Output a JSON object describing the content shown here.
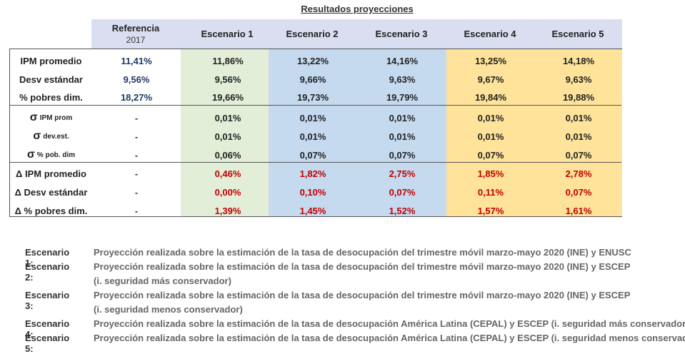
{
  "title": "Resultados proyecciones",
  "columns": [
    {
      "label": "Referencia",
      "sub": "2017"
    },
    {
      "label": "Escenario 1"
    },
    {
      "label": "Escenario 2"
    },
    {
      "label": "Escenario 3"
    },
    {
      "label": "Escenario 4"
    },
    {
      "label": "Escenario 5"
    }
  ],
  "rows": [
    {
      "label": "IPM promedio",
      "values": [
        "11,41%",
        "11,86%",
        "13,22%",
        "14,16%",
        "13,25%",
        "14,18%"
      ]
    },
    {
      "label": "Desv estándar",
      "values": [
        "9,56%",
        "9,56%",
        "9,66%",
        "9,63%",
        "9,67%",
        "9,63%"
      ]
    },
    {
      "label": "% pobres dim.",
      "values": [
        "18,27%",
        "19,66%",
        "19,73%",
        "19,79%",
        "19,84%",
        "19,88%"
      ]
    },
    {
      "symbol": "σ",
      "sub": "IPM prom",
      "values": [
        "-",
        "0,01%",
        "0,01%",
        "0,01%",
        "0,01%",
        "0,01%"
      ]
    },
    {
      "symbol": "σ",
      "sub": "dev.est.",
      "values": [
        "-",
        "0,01%",
        "0,01%",
        "0,01%",
        "0,01%",
        "0,01%"
      ]
    },
    {
      "symbol": "σ",
      "sub": "% pob. dim",
      "values": [
        "-",
        "0,06%",
        "0,07%",
        "0,07%",
        "0,07%",
        "0,07%"
      ]
    },
    {
      "label": "Δ IPM promedio",
      "values": [
        "-",
        "0,46%",
        "1,82%",
        "2,75%",
        "1,85%",
        "2,78%"
      ]
    },
    {
      "label": "Δ Desv estándar",
      "values": [
        "-",
        "0,00%",
        "0,10%",
        "0,07%",
        "0,11%",
        "0,07%"
      ]
    },
    {
      "label": "Δ % pobres dim.",
      "values": [
        "-",
        "1,39%",
        "1,45%",
        "1,52%",
        "1,57%",
        "1,61%"
      ]
    }
  ],
  "red_rows": [
    6,
    7,
    8
  ],
  "notes": [
    {
      "label": "Escenario 1:",
      "lines": [
        "Proyección realizada sobre la estimación de la tasa de desocupación del trimestre móvil marzo-mayo 2020 (INE) y ENUSC"
      ]
    },
    {
      "label": "Escenario 2:",
      "lines": [
        "Proyección realizada sobre la estimación de la tasa de desocupación del trimestre móvil marzo-mayo 2020 (INE) y ESCEP",
        "(i. seguridad más conservador)"
      ]
    },
    {
      "label": "Escenario 3:",
      "lines": [
        "Proyección realizada sobre la estimación de la tasa de desocupación del trimestre móvil marzo-mayo 2020 (INE) y ESCEP",
        "(i. seguridad menos conservador)"
      ]
    },
    {
      "label": "Escenario 4:",
      "lines": [
        "Proyección realizada sobre la estimación de la tasa de desocupación América Latina (CEPAL) y ESCEP (i. seguridad más conservador)"
      ]
    },
    {
      "label": "Escenario 5:",
      "lines": [
        "Proyección realizada sobre la estimación de la tasa de desocupación América Latina (CEPAL) y ESCEP (i. seguridad menos conservador)"
      ]
    }
  ],
  "colors": {
    "ref_text": "#1f3864",
    "delta_text": "#c00000",
    "s1_bg": "#e3eed9",
    "s23_bg": "#c5d9ef",
    "s45_bg": "#ffe39a",
    "header_bg": "#d9dff0"
  }
}
